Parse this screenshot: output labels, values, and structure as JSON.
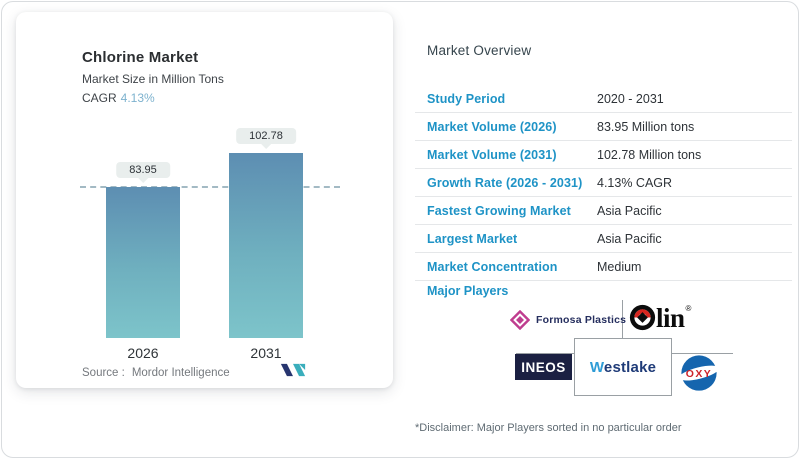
{
  "left_card": {
    "title": "Chlorine Market",
    "subtitle": "Market Size in Million Tons",
    "cagr_label": "CAGR",
    "cagr_value": "4.13%",
    "source_label": "Source :",
    "source_value": "Mordor Intelligence",
    "brand_logo": "mordor-intelligence-logo"
  },
  "chart_data": {
    "type": "bar",
    "categories": [
      "2026",
      "2031"
    ],
    "values": [
      83.95,
      102.78
    ],
    "labels": [
      "83.95",
      "102.78"
    ],
    "title": "Chlorine Market",
    "ylabel": "Market Size in Million Tons",
    "reference_line": 83.95,
    "grid": false,
    "legend": "none",
    "bar_color_top": "#5d8eb2",
    "bar_color_bottom": "#7dc4ca"
  },
  "overview": {
    "heading": "Market Overview",
    "rows": [
      {
        "label": "Study Period",
        "value": "2020 - 2031"
      },
      {
        "label": "Market Volume (2026)",
        "value": "83.95 Million tons"
      },
      {
        "label": "Market Volume (2031)",
        "value": "102.78 Million tons"
      },
      {
        "label": "Growth Rate (2026 - 2031)",
        "value": "4.13% CAGR"
      },
      {
        "label": "Fastest Growing Market",
        "value": "Asia Pacific"
      },
      {
        "label": "Largest Market",
        "value": "Asia Pacific"
      },
      {
        "label": "Market Concentration",
        "value": "Medium"
      }
    ],
    "major_players_label": "Major Players",
    "disclaimer": "*Disclaimer: Major Players sorted in no particular order"
  },
  "players": {
    "formosa": {
      "name": "Formosa Plastics"
    },
    "olin": {
      "name": "Olin",
      "suffix": "lin",
      "reg": "®"
    },
    "ineos": {
      "name": "INEOS"
    },
    "westlake": {
      "name": "Westlake",
      "initial": "W",
      "rest": "estlake"
    },
    "oxy": {
      "name": "OXY"
    }
  },
  "colors": {
    "label_blue": "#1e93c6",
    "cagr_blue": "#7db2ce",
    "text_dark": "#2e3338",
    "divider_gray": "#e5e7e9",
    "logo_line_gray": "#9aa0a4"
  }
}
